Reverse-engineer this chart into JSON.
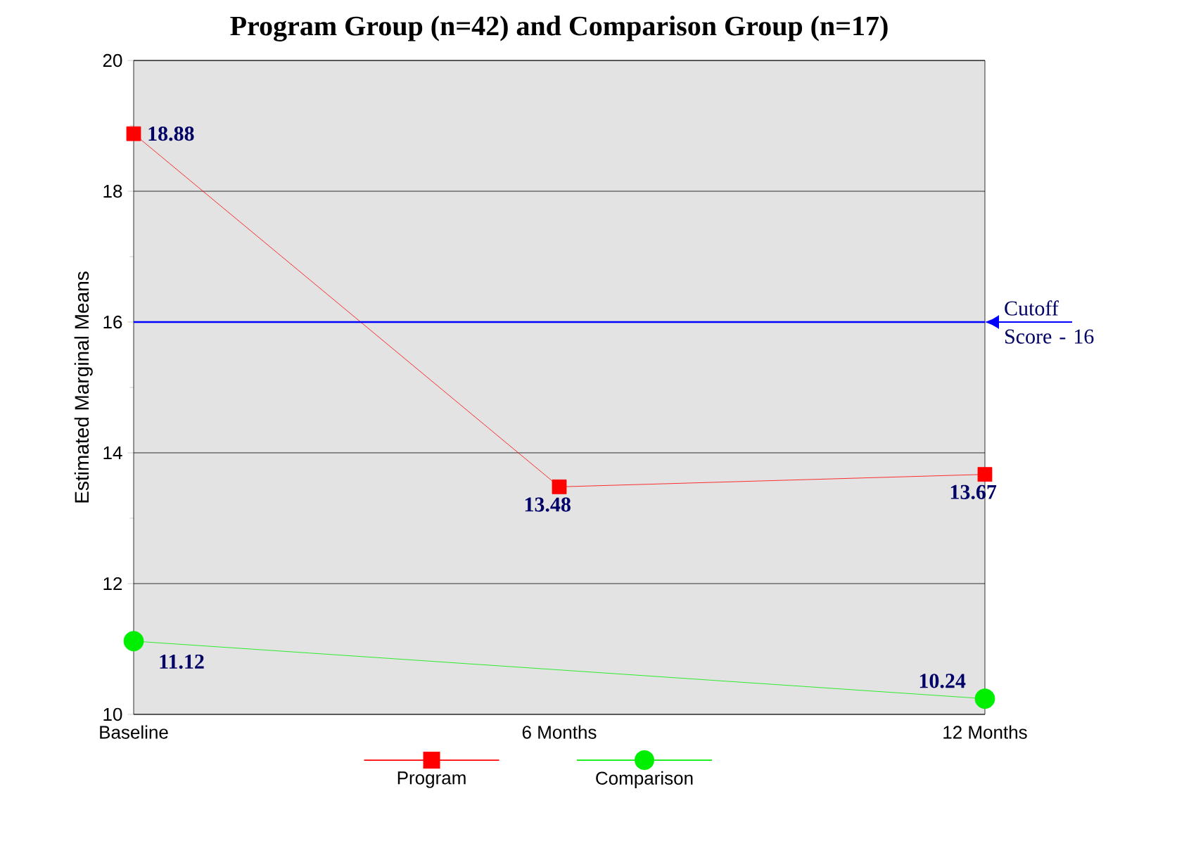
{
  "chart_data": {
    "type": "line",
    "title": "Program Group (n=42) and Comparison Group (n=17)",
    "ylabel": "Estimated Marginal Means",
    "categories": [
      "Baseline",
      "6 Months",
      "12 Months"
    ],
    "series": [
      {
        "name": "Program",
        "color": "#ff0000",
        "marker": "square",
        "values": [
          18.88,
          13.48,
          13.67
        ]
      },
      {
        "name": "Comparison",
        "color": "#00ee00",
        "marker": "circle",
        "values": [
          11.12,
          null,
          10.24
        ]
      }
    ],
    "ylim": [
      10,
      20
    ],
    "yticks": [
      10,
      12,
      14,
      16,
      18,
      20
    ],
    "grid": "y",
    "legend": "bottom",
    "data_labels": true,
    "ref_lines": [
      {
        "axis": "y",
        "value": 16,
        "label": "Cutoff Score - 16",
        "color": "#0000ff"
      }
    ]
  }
}
